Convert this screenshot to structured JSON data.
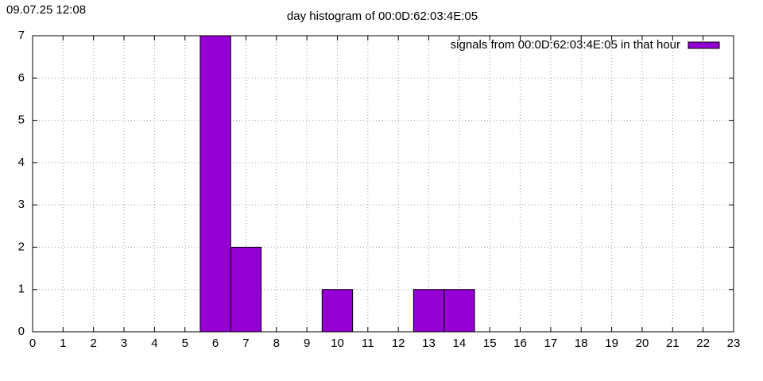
{
  "chart_data": {
    "type": "bar",
    "timestamp": "09.07.25 12:08",
    "title": "day histogram of 00:0D:62:03:4E:05",
    "series": [
      {
        "name": "signals from 00:0D:62:03:4E:05 in that hour",
        "color": "#9400d3",
        "x": [
          6,
          7,
          10,
          13,
          14
        ],
        "values": [
          7,
          2,
          1,
          1,
          1
        ]
      }
    ],
    "xlim": [
      0,
      23
    ],
    "xticks": [
      0,
      1,
      2,
      3,
      4,
      5,
      6,
      7,
      8,
      9,
      10,
      11,
      12,
      13,
      14,
      15,
      16,
      17,
      18,
      19,
      20,
      21,
      22,
      23
    ],
    "ylim": [
      0,
      7
    ],
    "yticks": [
      0,
      1,
      2,
      3,
      4,
      5,
      6,
      7
    ],
    "grid": true,
    "legend": "top-right"
  }
}
